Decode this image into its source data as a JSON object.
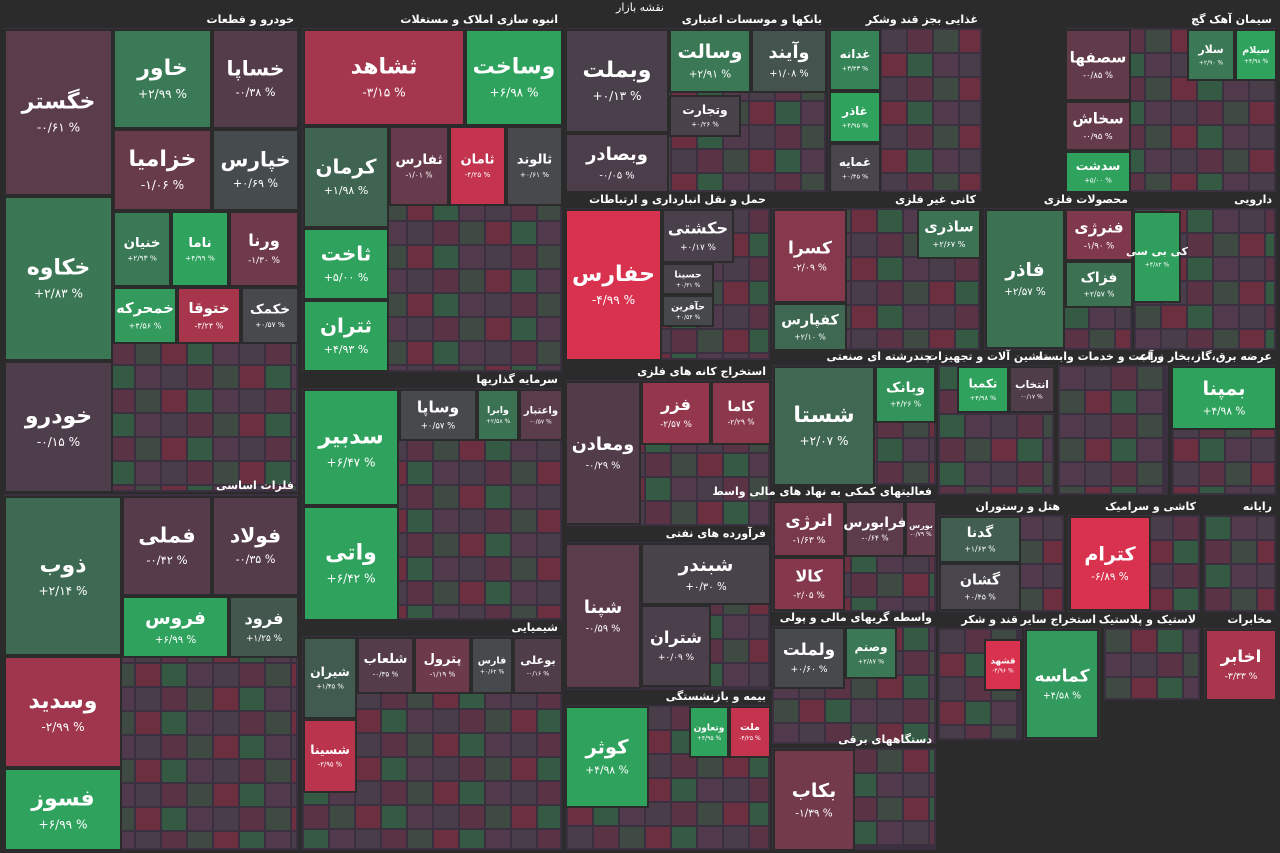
{
  "chart_data": {
    "type": "treemap",
    "title": "نقشه بازار",
    "groups": [
      {
        "name": "خودرو و قطعات",
        "tiles": [
          {
            "name": "خگستر",
            "value": -0.61,
            "value_label": "-۰/۶۱ %"
          },
          {
            "name": "خاور",
            "value": 2.99,
            "value_label": "+۲/۹۹ %"
          },
          {
            "name": "خساپا",
            "value": -0.38,
            "value_label": "-۰/۳۸ %"
          },
          {
            "name": "خزامیا",
            "value": -1.06,
            "value_label": "-۱/۰۶ %"
          },
          {
            "name": "خپارس",
            "value": 0.69,
            "value_label": "+۰/۶۹ %"
          },
          {
            "name": "خکاوه",
            "value": 2.83,
            "value_label": "+۲/۸۳ %"
          },
          {
            "name": "خنیان",
            "value": 2.93,
            "value_label": "+۲/۹۳ %"
          },
          {
            "name": "ناما",
            "value": 4.99,
            "value_label": "+۴/۹۹ %"
          },
          {
            "name": "ورنا",
            "value": -1.3,
            "value_label": "-۱/۳۰ %"
          },
          {
            "name": "خودرو",
            "value": -0.15,
            "value_label": "-۰/۱۵ %"
          },
          {
            "name": "خمحرکه",
            "value": 4.56,
            "value_label": "+۴/۵۶ %"
          },
          {
            "name": "ختوقا",
            "value": -3.24,
            "value_label": "-۳/۲۴ %"
          },
          {
            "name": "خکمک",
            "value": 0.57,
            "value_label": "+۰/۵۷ %"
          }
        ]
      },
      {
        "name": "فلزات اساسی",
        "tiles": [
          {
            "name": "ذوب",
            "value": 2.14,
            "value_label": "+۲/۱۴ %"
          },
          {
            "name": "فملی",
            "value": -0.42,
            "value_label": "-۰/۴۲ %"
          },
          {
            "name": "فولاد",
            "value": -0.35,
            "value_label": "-۰/۳۵ %"
          },
          {
            "name": "فروس",
            "value": 6.99,
            "value_label": "+۶/۹۹ %"
          },
          {
            "name": "فرود",
            "value": 1.25,
            "value_label": "+۱/۲۵ %"
          },
          {
            "name": "وسدید",
            "value": -2.99,
            "value_label": "-۲/۹۹ %"
          },
          {
            "name": "فسوز",
            "value": 6.99,
            "value_label": "+۶/۹۹ %"
          }
        ]
      },
      {
        "name": "انبوه سازی املاک و مستغلات",
        "tiles": [
          {
            "name": "ثشاهد",
            "value": -3.15,
            "value_label": "-۳/۱۵ %"
          },
          {
            "name": "وساخت",
            "value": 6.98,
            "value_label": "+۶/۹۸ %"
          },
          {
            "name": "کرمان",
            "value": 1.98,
            "value_label": "+۱/۹۸ %"
          },
          {
            "name": "ثفارس",
            "value": -1.01,
            "value_label": "-۱/۰۱ %"
          },
          {
            "name": "ثامان",
            "value": -4.25,
            "value_label": "-۴/۲۵ %"
          },
          {
            "name": "ثالوند",
            "value": 0.61,
            "value_label": "+۰/۶۱ %"
          },
          {
            "name": "ثاخت",
            "value": 5.0,
            "value_label": "+۵/۰۰ %"
          },
          {
            "name": "ثتران",
            "value": 4.93,
            "value_label": "+۴/۹۳ %"
          }
        ]
      },
      {
        "name": "سرمایه گذاریها",
        "tiles": [
          {
            "name": "سدبیر",
            "value": 6.47,
            "value_label": "+۶/۴۷ %"
          },
          {
            "name": "وساپا",
            "value": 0.57,
            "value_label": "+۰/۵۷ %"
          },
          {
            "name": "وابرا",
            "value": 2.58,
            "value_label": "+۲/۵۸ %"
          },
          {
            "name": "واعتبار",
            "value": -0.57,
            "value_label": "-۰/۵۷ %"
          },
          {
            "name": "واتی",
            "value": 6.42,
            "value_label": "+۶/۴۲ %"
          }
        ]
      },
      {
        "name": "شیمیایی",
        "tiles": [
          {
            "name": "شیران",
            "value": 1.45,
            "value_label": "+۱/۴۵ %"
          },
          {
            "name": "شلعاب",
            "value": -0.35,
            "value_label": "-۰/۳۵ %"
          },
          {
            "name": "پترول",
            "value": -1.19,
            "value_label": "-۱/۱۹ %"
          },
          {
            "name": "فارس",
            "value": 0.62,
            "value_label": "+۰/۶۲ %"
          },
          {
            "name": "بوعلی",
            "value": -0.16,
            "value_label": "-۰/۱۶ %"
          },
          {
            "name": "شسینا",
            "value": -3.95,
            "value_label": "-۳/۹۵ %"
          }
        ]
      },
      {
        "name": "بانکها و موسسات اعتباری",
        "tiles": [
          {
            "name": "وبملت",
            "value": 0.13,
            "value_label": "+۰/۱۳ %"
          },
          {
            "name": "وسالت",
            "value": 2.91,
            "value_label": "+۲/۹۱ %"
          },
          {
            "name": "وآیند",
            "value": 1.08,
            "value_label": "+۱/۰۸ %"
          },
          {
            "name": "وتجارت",
            "value": 0.26,
            "value_label": "+۰/۲۶ %"
          },
          {
            "name": "وبصادر",
            "value": -0.05,
            "value_label": "-۰/۰۵ %"
          }
        ]
      },
      {
        "name": "حمل و نقل انبارداری و ارتباطات",
        "tiles": [
          {
            "name": "حفارس",
            "value": -4.99,
            "value_label": "-۴/۹۹ %"
          },
          {
            "name": "حکشتی",
            "value": 0.17,
            "value_label": "+۰/۱۷ %"
          },
          {
            "name": "حسینا",
            "value": 0.31,
            "value_label": "+۰/۳۱ %"
          },
          {
            "name": "حآفرین",
            "value": 0.54,
            "value_label": "+۰/۵۴ %"
          }
        ]
      },
      {
        "name": "استخراج کانه های فلزی",
        "tiles": [
          {
            "name": "ومعادن",
            "value": -0.29,
            "value_label": "-۰/۲۹ %"
          },
          {
            "name": "فزر",
            "value": -2.57,
            "value_label": "-۲/۵۷ %"
          },
          {
            "name": "کاما",
            "value": -2.29,
            "value_label": "-۲/۲۹ %"
          }
        ]
      },
      {
        "name": "فرآورده های نفتی",
        "tiles": [
          {
            "name": "شپنا",
            "value": -0.59,
            "value_label": "-۰/۵۹ %"
          },
          {
            "name": "شبندر",
            "value": 0.3,
            "value_label": "+۰/۳۰ %"
          },
          {
            "name": "شتران",
            "value": 0.09,
            "value_label": "+۰/۰۹ %"
          }
        ]
      },
      {
        "name": "بیمه و بازنشستگی",
        "tiles": [
          {
            "name": "کوثر",
            "value": 4.98,
            "value_label": "+۴/۹۸ %"
          },
          {
            "name": "وتعاون",
            "value": 4.95,
            "value_label": "+۴/۹۵ %"
          },
          {
            "name": "ملت",
            "value": -4.25,
            "value_label": "-۴/۲۵ %"
          }
        ]
      },
      {
        "name": "غذایی بجز قند وشکر",
        "tiles": [
          {
            "name": "غدانه",
            "value": 3.43,
            "value_label": "+۳/۴۳ %"
          },
          {
            "name": "غاذر",
            "value": 4.95,
            "value_label": "+۴/۹۵ %"
          },
          {
            "name": "غمایه",
            "value": 0.45,
            "value_label": "+۰/۴۵ %"
          }
        ]
      },
      {
        "name": "سیمان آهک گچ",
        "tiles": [
          {
            "name": "سصفها",
            "value": -0.85,
            "value_label": "-۰/۸۵ %"
          },
          {
            "name": "سلار",
            "value": 2.9,
            "value_label": "+۲/۹۰ %"
          },
          {
            "name": "سیلام",
            "value": 4.98,
            "value_label": "+۴/۹۸ %"
          },
          {
            "name": "سخاش",
            "value": -0.95,
            "value_label": "-۰/۹۵ %"
          },
          {
            "name": "سدشت",
            "value": 5.0,
            "value_label": "+۵/۰۰ %"
          }
        ]
      },
      {
        "name": "کانی غیر فلزی",
        "tiles": [
          {
            "name": "کسرا",
            "value": -2.09,
            "value_label": "-۲/۰۹ %"
          },
          {
            "name": "ساذری",
            "value": 2.67,
            "value_label": "+۲/۶۷ %"
          },
          {
            "name": "کفپارس",
            "value": 2.1,
            "value_label": "+۲/۱۰ %"
          }
        ]
      },
      {
        "name": "محصولات فلزی",
        "tiles": [
          {
            "name": "فاذر",
            "value": 2.57,
            "value_label": "+۲/۵۷ %"
          },
          {
            "name": "فنرژی",
            "value": -1.9,
            "value_label": "-۱/۹۰ %"
          },
          {
            "name": "فزاک",
            "value": 2.57,
            "value_label": "+۲/۵۷ %"
          }
        ]
      },
      {
        "name": "دارویی",
        "tiles": [
          {
            "name": "کی بی سی",
            "value": 4.82,
            "value_label": "+۴/۸۲ %"
          }
        ]
      },
      {
        "name": "چندرشته ای صنعتی",
        "tiles": [
          {
            "name": "شستا",
            "value": 2.07,
            "value_label": "+۲/۰۷ %"
          },
          {
            "name": "وبانک",
            "value": 4.26,
            "value_label": "+۴/۲۶ %"
          }
        ]
      },
      {
        "name": "ماشین آلات و تجهیزات",
        "tiles": [
          {
            "name": "تکمبا",
            "value": 4.98,
            "value_label": "+۴/۹۸ %"
          },
          {
            "name": "انتخاب",
            "value": -0.17,
            "value_label": "-۰/۱۷ %"
          }
        ]
      },
      {
        "name": "زراعت و خدمات وابسته",
        "tiles": []
      },
      {
        "name": "عرضه برق،گاز،بخار و آب",
        "tiles": [
          {
            "name": "بمپنا",
            "value": 4.98,
            "value_label": "+۴/۹۸ %"
          }
        ]
      },
      {
        "name": "فعالیتهای کمکی به نهاد های مالی واسط",
        "tiles": [
          {
            "name": "انرژی",
            "value": -1.63,
            "value_label": "-۱/۶۳ %"
          },
          {
            "name": "فرابورس",
            "value": -0.64,
            "value_label": "-۰/۶۴ %"
          },
          {
            "name": "بورس",
            "value": -0.79,
            "value_label": "-۰/۷۹ %"
          },
          {
            "name": "کالا",
            "value": -2.05,
            "value_label": "-۲/۰۵ %"
          }
        ]
      },
      {
        "name": "هتل و رستوران",
        "tiles": [
          {
            "name": "گدنا",
            "value": 1.63,
            "value_label": "+۱/۶۳ %"
          },
          {
            "name": "گشان",
            "value": 0.45,
            "value_label": "+۰/۴۵ %"
          }
        ]
      },
      {
        "name": "کاشی و سرامیک",
        "tiles": [
          {
            "name": "کترام",
            "value": -6.89,
            "value_label": "-۶/۸۹ %"
          }
        ]
      },
      {
        "name": "رایانه",
        "tiles": []
      },
      {
        "name": "واسطه گریهای مالی و پولی",
        "tiles": [
          {
            "name": "ولملت",
            "value": 0.6,
            "value_label": "+۰/۶۰ %"
          },
          {
            "name": "وصنم",
            "value": 2.87,
            "value_label": "+۲/۸۷ %"
          }
        ]
      },
      {
        "name": "قند و شکر",
        "tiles": [
          {
            "name": "قشهد",
            "value": -4.96,
            "value_label": "-۴/۹۶ %"
          }
        ]
      },
      {
        "name": "استخراج سایر",
        "tiles": [
          {
            "name": "کماسه",
            "value": 4.58,
            "value_label": "+۴/۵۸ %"
          }
        ]
      },
      {
        "name": "لاستیک و پلاستیک",
        "tiles": []
      },
      {
        "name": "مخابرات",
        "tiles": [
          {
            "name": "اخابر",
            "value": -3.33,
            "value_label": "-۳/۳۳ %"
          }
        ]
      },
      {
        "name": "دستگاههای برقی",
        "tiles": [
          {
            "name": "بکاب",
            "value": -1.39,
            "value_label": "-۱/۳۹ %"
          }
        ]
      }
    ]
  }
}
